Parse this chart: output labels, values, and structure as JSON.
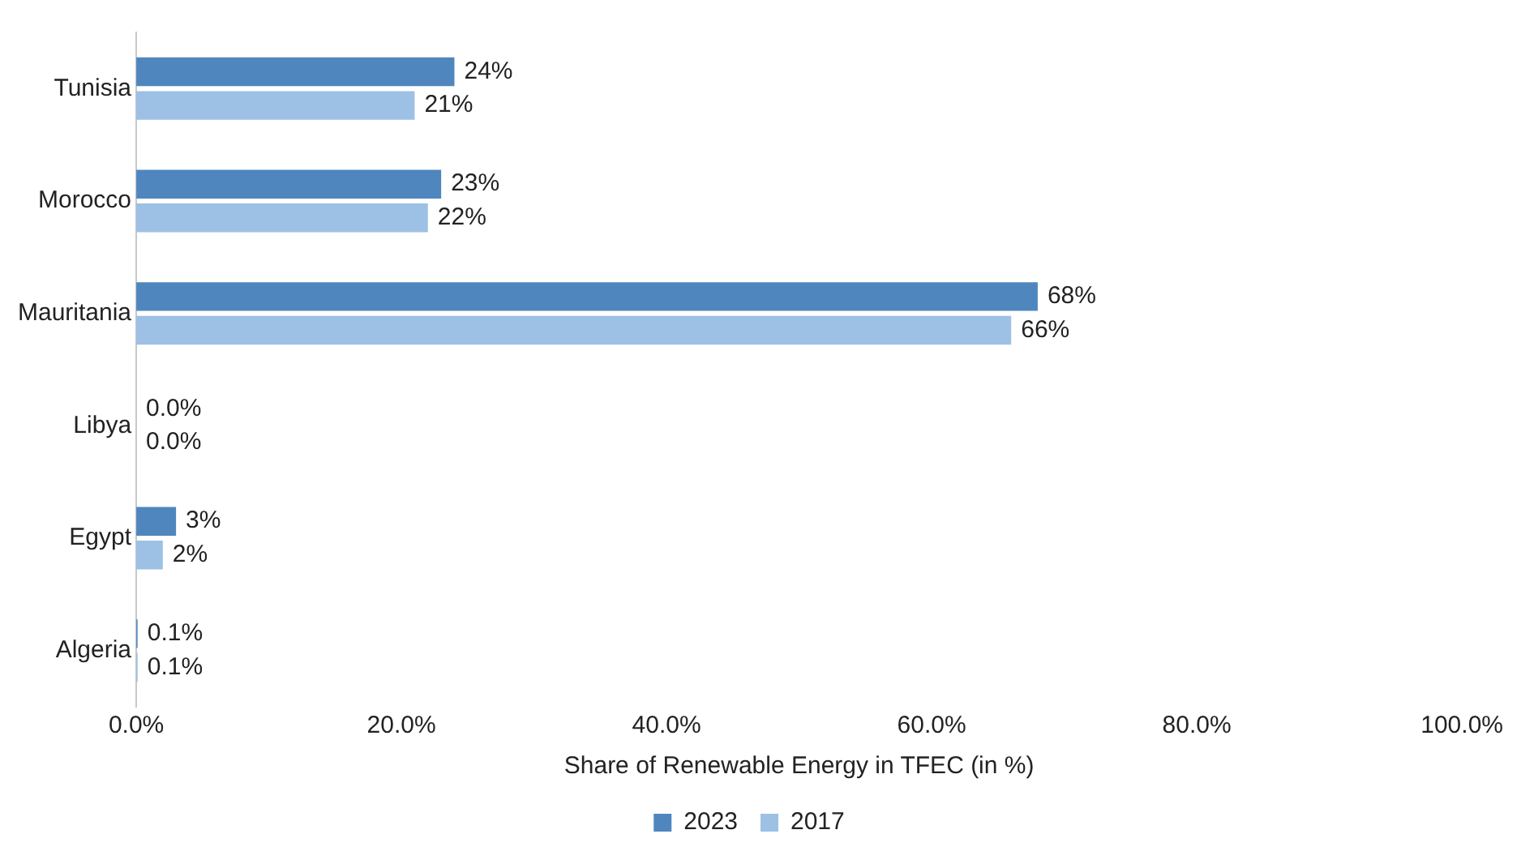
{
  "chart_data": {
    "type": "bar",
    "orientation": "horizontal",
    "categories": [
      "Tunisia",
      "Morocco",
      "Mauritania",
      "Libya",
      "Egypt",
      "Algeria"
    ],
    "series": [
      {
        "name": "2023",
        "color": "#4f86be",
        "values": [
          24,
          23,
          68,
          0,
          3,
          0.1
        ],
        "value_labels": [
          "24%",
          "23%",
          "68%",
          "0.0%",
          "3%",
          "0.1%"
        ]
      },
      {
        "name": "2017",
        "color": "#9dc0e5",
        "values": [
          21,
          22,
          66,
          0,
          2,
          0.1
        ],
        "value_labels": [
          "21%",
          "22%",
          "66%",
          "0.0%",
          "2%",
          "0.1%"
        ]
      }
    ],
    "xlabel": "Share of Renewable Energy in TFEC (in %)",
    "xlim": [
      0,
      100
    ],
    "xticks": [
      {
        "value": 0,
        "label": "0.0%"
      },
      {
        "value": 20,
        "label": "20.0%"
      },
      {
        "value": 40,
        "label": "40.0%"
      },
      {
        "value": 60,
        "label": "60.0%"
      },
      {
        "value": 80,
        "label": "80.0%"
      },
      {
        "value": 100,
        "label": "100.0%"
      }
    ],
    "grid": false,
    "legend": "bottom"
  }
}
